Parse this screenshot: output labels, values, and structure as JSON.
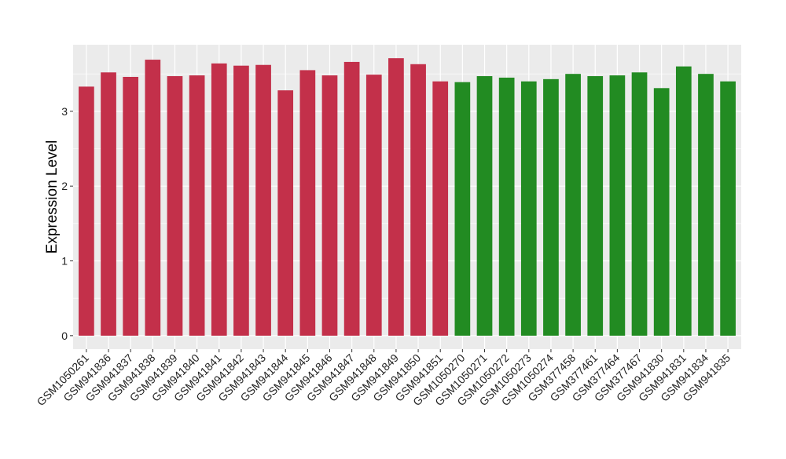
{
  "chart_data": {
    "type": "bar",
    "title": "",
    "xlabel": "",
    "ylabel": "Expression Level",
    "ylim": [
      -0.18,
      3.89
    ],
    "yticks": [
      0,
      1,
      2,
      3
    ],
    "grid": true,
    "categories": [
      "GSM1050261",
      "GSM941836",
      "GSM941837",
      "GSM941838",
      "GSM941839",
      "GSM941840",
      "GSM941841",
      "GSM941842",
      "GSM941843",
      "GSM941844",
      "GSM941845",
      "GSM941846",
      "GSM941847",
      "GSM941848",
      "GSM941849",
      "GSM941850",
      "GSM941851",
      "GSM1050270",
      "GSM1050271",
      "GSM1050272",
      "GSM1050273",
      "GSM1050274",
      "GSM377458",
      "GSM377461",
      "GSM377464",
      "GSM377467",
      "GSM941830",
      "GSM941831",
      "GSM941834",
      "GSM941835"
    ],
    "values": [
      3.33,
      3.52,
      3.46,
      3.69,
      3.47,
      3.48,
      3.64,
      3.61,
      3.62,
      3.28,
      3.55,
      3.48,
      3.66,
      3.49,
      3.71,
      3.63,
      3.4,
      3.39,
      3.47,
      3.45,
      3.4,
      3.43,
      3.5,
      3.47,
      3.48,
      3.52,
      3.31,
      3.6,
      3.5,
      3.4
    ],
    "groups": [
      "red",
      "red",
      "red",
      "red",
      "red",
      "red",
      "red",
      "red",
      "red",
      "red",
      "red",
      "red",
      "red",
      "red",
      "red",
      "red",
      "red",
      "green",
      "green",
      "green",
      "green",
      "green",
      "green",
      "green",
      "green",
      "green",
      "green",
      "green",
      "green",
      "green"
    ],
    "colors": {
      "red": "#C3304A",
      "green": "#228B22",
      "panel": "#EBEBEB",
      "grid": "#FFFFFF"
    }
  }
}
